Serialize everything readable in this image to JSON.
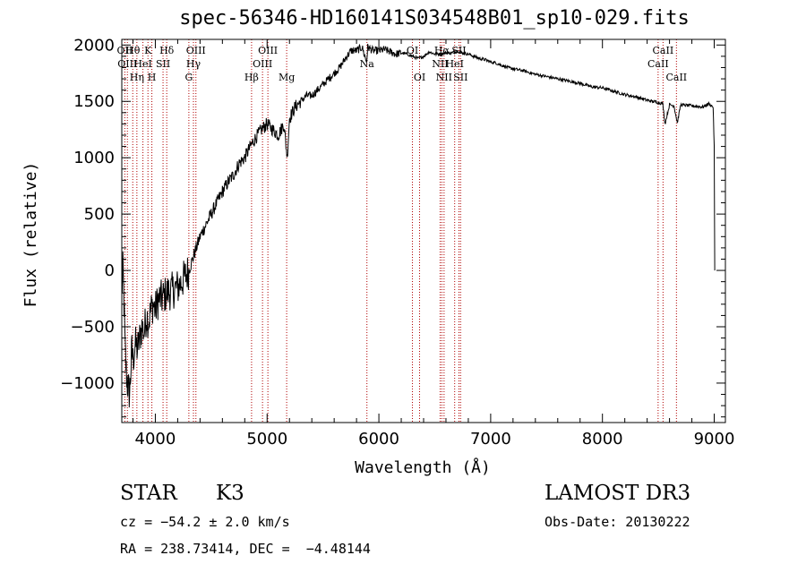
{
  "title": "spec-56346-HD160141S034548B01_sp10-029.fits",
  "info": {
    "class": "STAR",
    "subclass": "K3",
    "survey": "LAMOST DR3",
    "cz": "cz = −54.2 ± 2.0 km/s",
    "obs_date": "Obs-Date: 20130222",
    "radec": "RA = 238.73414, DEC =  −4.48144"
  },
  "chart_data": {
    "type": "line",
    "xlabel": "Wavelength (Å)",
    "ylabel": "Flux (relative)",
    "xlim": [
      3700,
      9100
    ],
    "ylim": [
      -1350,
      2050
    ],
    "xticks": [
      4000,
      5000,
      6000,
      7000,
      8000,
      9000
    ],
    "xtick_labels": [
      "4000",
      "5000",
      "6000",
      "7000",
      "8000",
      "9000"
    ],
    "yticks": [
      -1000,
      -500,
      0,
      500,
      1000,
      1500,
      2000
    ],
    "ytick_labels": [
      "−1000",
      "−500",
      "0",
      "500",
      "1000",
      "1500",
      "2000"
    ],
    "grid": false,
    "line_color": "#000000",
    "marker_color": "#b00000",
    "series": [
      {
        "x": [
          3700,
          3710,
          3720,
          3730,
          3740,
          3750,
          3760,
          3770,
          3780,
          3790,
          3800,
          3820,
          3840,
          3860,
          3880,
          3900,
          3920,
          3940,
          3960,
          3980,
          4000,
          4030,
          4060,
          4100,
          4150,
          4200,
          4250,
          4300,
          4350,
          4400,
          4450,
          4500,
          4550,
          4600,
          4650,
          4700,
          4750,
          4800,
          4850,
          4900,
          4950,
          5000,
          5050,
          5100,
          5150,
          5180,
          5200,
          5250,
          5300,
          5350,
          5400,
          5450,
          5500,
          5550,
          5600,
          5650,
          5700,
          5750,
          5800,
          5850,
          5890,
          5900,
          5950,
          6000,
          6050,
          6100,
          6150,
          6200,
          6250,
          6300,
          6350,
          6400,
          6450,
          6500,
          6560,
          6600,
          6650,
          6700,
          6750,
          6800,
          6850,
          6900,
          6950,
          7000,
          7050,
          7100,
          7150,
          7200,
          7300,
          7400,
          7500,
          7600,
          7700,
          7800,
          7900,
          8000,
          8100,
          8200,
          8300,
          8400,
          8450,
          8500,
          8540,
          8560,
          8600,
          8640,
          8670,
          8700,
          8800,
          8900,
          8950,
          8990,
          9000,
          9005
        ],
        "y": [
          -200,
          0,
          -300,
          -700,
          -900,
          -1000,
          -1050,
          -1100,
          -900,
          -700,
          -800,
          -650,
          -700,
          -600,
          -500,
          -550,
          -400,
          -450,
          -350,
          -300,
          -350,
          -250,
          -250,
          -200,
          -180,
          -150,
          -80,
          0,
          150,
          300,
          400,
          500,
          600,
          700,
          780,
          850,
          950,
          1000,
          1100,
          1180,
          1250,
          1300,
          1250,
          1200,
          1300,
          1000,
          1350,
          1450,
          1500,
          1550,
          1550,
          1600,
          1650,
          1700,
          1750,
          1800,
          1880,
          1950,
          1950,
          1980,
          1850,
          1980,
          1950,
          1950,
          1960,
          1940,
          1920,
          1930,
          1920,
          1900,
          1880,
          1900,
          1940,
          1920,
          1920,
          1930,
          1930,
          1950,
          1930,
          1920,
          1900,
          1880,
          1870,
          1850,
          1840,
          1820,
          1800,
          1790,
          1770,
          1740,
          1720,
          1700,
          1680,
          1660,
          1630,
          1620,
          1590,
          1560,
          1540,
          1510,
          1500,
          1490,
          1480,
          1300,
          1470,
          1460,
          1310,
          1470,
          1460,
          1450,
          1480,
          1450,
          1100,
          0
        ]
      }
    ],
    "markers": [
      {
        "x": 3727,
        "lines": [
          "OII"
        ]
      },
      {
        "x": 3750,
        "lines": [
          "",
          "OIII"
        ]
      },
      {
        "x": 3798,
        "lines": [
          "Hθ"
        ]
      },
      {
        "x": 3835,
        "lines": [
          "",
          "",
          "Hη"
        ]
      },
      {
        "x": 3889,
        "lines": [
          "",
          "HeI"
        ]
      },
      {
        "x": 3934,
        "lines": [
          "K"
        ]
      },
      {
        "x": 3969,
        "lines": [
          "",
          "",
          "H"
        ]
      },
      {
        "x": 4069,
        "lines": [
          "",
          "SII"
        ]
      },
      {
        "x": 4102,
        "lines": [
          "Hδ"
        ]
      },
      {
        "x": 4300,
        "lines": [
          "",
          "",
          "G"
        ]
      },
      {
        "x": 4341,
        "lines": [
          "",
          "Hγ"
        ]
      },
      {
        "x": 4363,
        "lines": [
          "OIII"
        ]
      },
      {
        "x": 4861,
        "lines": [
          "",
          "",
          "Hβ"
        ]
      },
      {
        "x": 4959,
        "lines": [
          "",
          "OIII"
        ]
      },
      {
        "x": 5007,
        "lines": [
          "OIII"
        ]
      },
      {
        "x": 5175,
        "lines": [
          "",
          "",
          "Mg"
        ]
      },
      {
        "x": 5893,
        "lines": [
          "",
          "Na"
        ]
      },
      {
        "x": 6300,
        "lines": [
          "OI"
        ]
      },
      {
        "x": 6364,
        "lines": [
          "",
          "",
          "OI"
        ]
      },
      {
        "x": 6548,
        "lines": [
          "",
          "NII"
        ]
      },
      {
        "x": 6563,
        "lines": [
          "Hα"
        ]
      },
      {
        "x": 6583,
        "lines": [
          "",
          "",
          "NII"
        ]
      },
      {
        "x": 6678,
        "lines": [
          "",
          "HeI"
        ]
      },
      {
        "x": 6716,
        "lines": [
          "SII"
        ]
      },
      {
        "x": 6731,
        "lines": [
          "",
          "",
          "SII"
        ]
      },
      {
        "x": 8498,
        "lines": [
          "",
          "CaII"
        ]
      },
      {
        "x": 8542,
        "lines": [
          "CaII"
        ]
      },
      {
        "x": 8662,
        "lines": [
          "",
          "",
          "CaII"
        ]
      }
    ]
  }
}
